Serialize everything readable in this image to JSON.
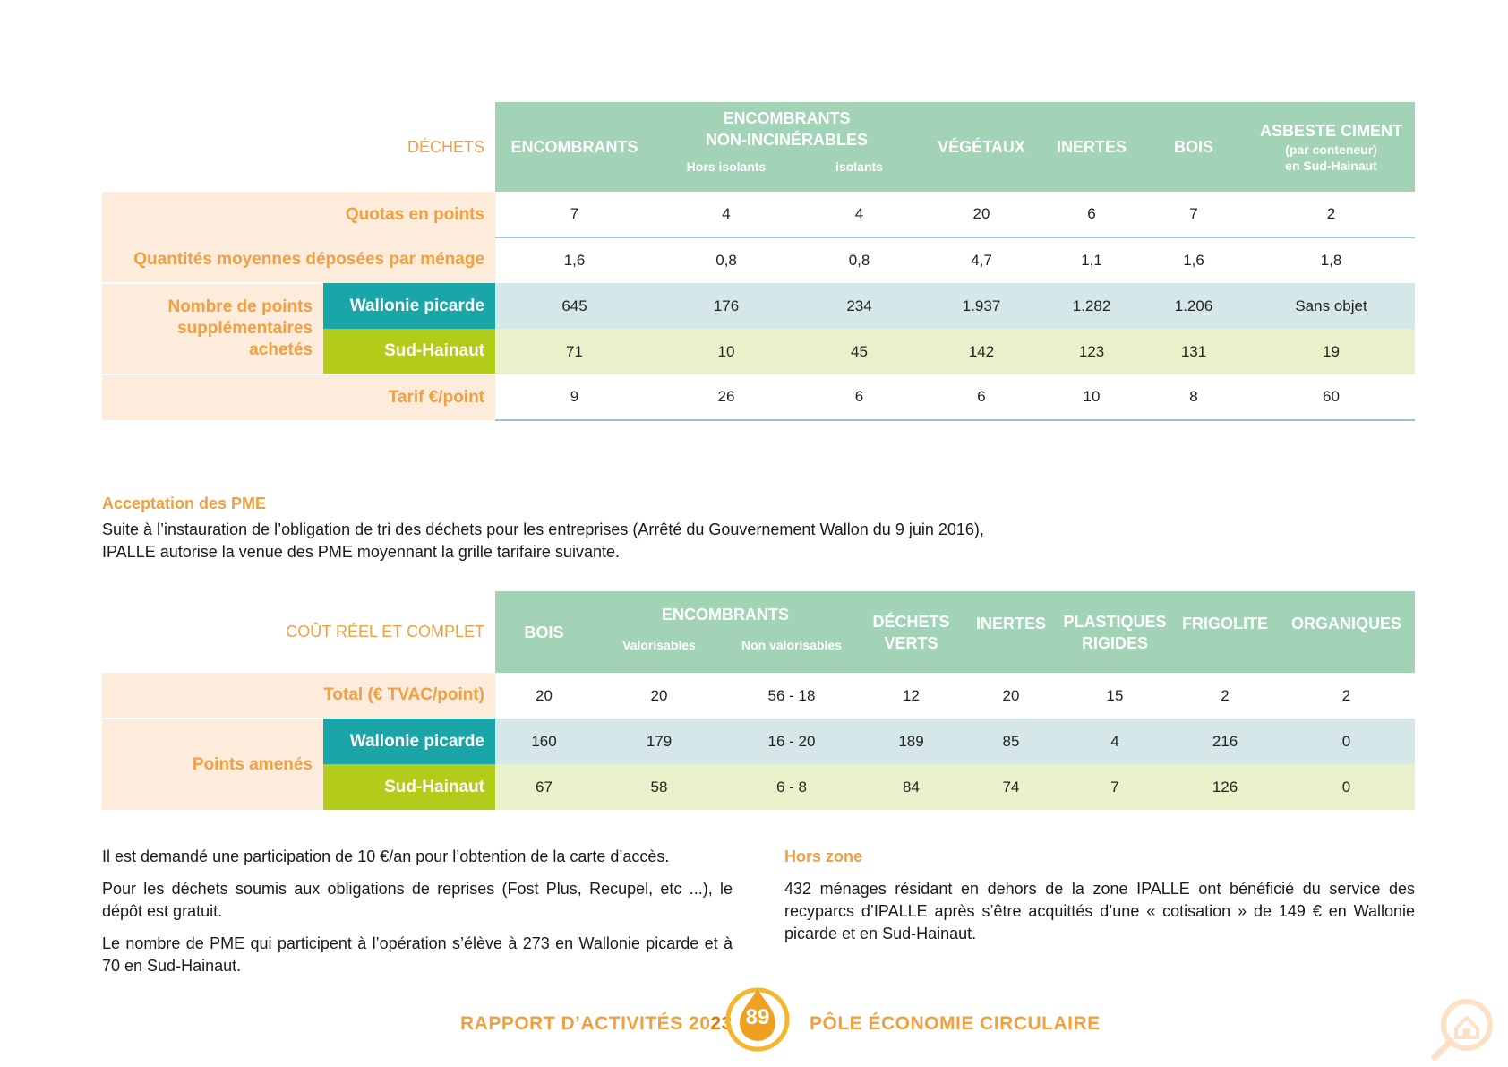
{
  "table1": {
    "corner": "DÉCHETS",
    "headers": {
      "encombrants": "ENCOMBRANTS",
      "non_inc_1": "ENCOMBRANTS",
      "non_inc_2": "NON-INCINÉRABLES",
      "hors_isolants": "Hors isolants",
      "isolants": "isolants",
      "vegetaux": "VÉGÉTAUX",
      "inertes": "INERTES",
      "bois": "BOIS",
      "asbeste": "ASBESTE CIMENT",
      "asbeste_sub1": "(par conteneur)",
      "asbeste_sub2": "en Sud-Hainaut"
    },
    "rows": {
      "quotas": {
        "label": "Quotas en points",
        "values": [
          "7",
          "4",
          "4",
          "20",
          "6",
          "7",
          "2"
        ]
      },
      "quantites": {
        "label": "Quantités moyennes déposées par ménage",
        "values": [
          "1,6",
          "0,8",
          "0,8",
          "4,7",
          "1,1",
          "1,6",
          "1,8"
        ]
      },
      "points_label_1": "Nombre de points",
      "points_label_2": "supplémentaires",
      "points_label_3": "achetés",
      "wallonie": {
        "label": "Wallonie picarde",
        "values": [
          "645",
          "176",
          "234",
          "1.937",
          "1.282",
          "1.206",
          "Sans objet"
        ]
      },
      "sud": {
        "label": "Sud-Hainaut",
        "values": [
          "71",
          "10",
          "45",
          "142",
          "123",
          "131",
          "19"
        ]
      },
      "tarif": {
        "label": "Tarif €/point",
        "values": [
          "9",
          "26",
          "6",
          "6",
          "10",
          "8",
          "60"
        ]
      }
    }
  },
  "pme": {
    "title": "Acceptation des PME",
    "line1": "Suite à l’instauration de l’obligation de tri des déchets pour les entreprises (Arrêté du Gouvernement Wallon du 9 juin 2016),",
    "line2": "IPALLE autorise la venue des PME moyennant la grille tarifaire suivante."
  },
  "table2": {
    "corner": "COÛT RÉEL ET COMPLET",
    "headers": {
      "bois": "BOIS",
      "encombrants": "ENCOMBRANTS",
      "valorisables": "Valorisables",
      "non_valorisables": "Non valorisables",
      "dechets_verts_1": "DÉCHETS",
      "dechets_verts_2": "VERTS",
      "inertes": "INERTES",
      "plastiques_1": "PLASTIQUES",
      "plastiques_2": "RIGIDES",
      "frigolite": "FRIGOLITE",
      "organiques": "ORGANIQUES"
    },
    "rows": {
      "total": {
        "label": "Total (€ TVAC/point)",
        "values": [
          "20",
          "20",
          "56 - 18",
          "12",
          "20",
          "15",
          "2",
          "2"
        ]
      },
      "points_label": "Points amenés",
      "wallonie": {
        "label": "Wallonie picarde",
        "values": [
          "160",
          "179",
          "16 - 20",
          "189",
          "85",
          "4",
          "216",
          "0"
        ]
      },
      "sud": {
        "label": "Sud-Hainaut",
        "values": [
          "67",
          "58",
          "6 - 8",
          "84",
          "74",
          "7",
          "126",
          "0"
        ]
      }
    }
  },
  "left_text": {
    "p1": "Il est demandé une participation de 10 €/an pour l’obtention de la carte d’accès.",
    "p2": "Pour les déchets soumis aux obligations de reprises (Fost Plus, Recupel, etc ...), le dépôt est gratuit.",
    "p3": "Le nombre de PME qui participent à l’opération s’élève à 273 en Wallonie picarde et à 70 en Sud-Hainaut."
  },
  "right_text": {
    "title": "Hors zone",
    "p1": "432 ménages résidant en dehors de la zone IPALLE ont bénéficié du service des recyparcs d’IPALLE après s’être acquittés d’une « cotisation » de 149 € en Wallonie picarde et en Sud-Hainaut."
  },
  "footer": {
    "left_a": "RAPPORT D’ACTIVITÉS 20",
    "left_b": "23",
    "page": "89",
    "right": "PÔLE ÉCONOMIE CIRCULAIRE"
  },
  "colors": {
    "header_green": "#a3d3b6",
    "orange": "#f0a040",
    "wallonie": "#1aa6a8",
    "sud": "#b3cc1a",
    "peach": "#fdebdc"
  },
  "icons": [
    "magnifier-house-icon"
  ]
}
